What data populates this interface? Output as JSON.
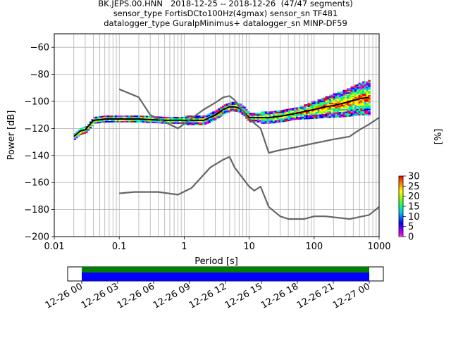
{
  "title": {
    "line1": "BK.JEPS.00.HNN   2018-12-25 -- 2018-12-26  (47/47 segments)",
    "line2": "sensor_type FortisDCto100Hz(4gmax) sensor_sn TF481",
    "line3": "datalogger_type GuralpMinimus+ datalogger_sn MINP-DF59"
  },
  "colorbar": {
    "label": "[%]",
    "ticks": [
      "0",
      "5",
      "10",
      "15",
      "20",
      "25",
      "30"
    ]
  },
  "timeline": {
    "ticks": [
      "12-26 00",
      "12-26 03",
      "12-26 06",
      "12-26 09",
      "12-26 12",
      "12-26 15",
      "12-26 18",
      "12-26 21",
      "12-27 00"
    ],
    "bar_colors": [
      "#008000",
      "#0000ff"
    ]
  },
  "chart_data": {
    "type": "heatmap",
    "title": "BK.JEPS.00.HNN   2018-12-25 -- 2018-12-26  (47/47 segments)",
    "xlabel": "Period [s]",
    "ylabel": "Power [dB]",
    "xscale": "log",
    "xlim": [
      0.01,
      1000
    ],
    "ylim": [
      -200,
      -50
    ],
    "x_ticks": [
      "0.01",
      "0.1",
      "1",
      "10",
      "100",
      "1000"
    ],
    "y_ticks": [
      "-60",
      "-80",
      "-100",
      "-120",
      "-140",
      "-160",
      "-180",
      "-200"
    ],
    "y_tick_values": [
      -60,
      -80,
      -100,
      -120,
      -140,
      -160,
      -180,
      -200
    ],
    "grid": true,
    "colormap": "pqlx",
    "colorbar_range": [
      0,
      30
    ],
    "series": [
      {
        "name": "",
        "role": "mean",
        "color": "#000000",
        "x": [
          0.02,
          0.025,
          0.03,
          0.04,
          0.06,
          0.1,
          0.2,
          0.5,
          1,
          2,
          3,
          4,
          5,
          6,
          7,
          8,
          9,
          10,
          15,
          20,
          30,
          50,
          80,
          100,
          150,
          200,
          300,
          500,
          700
        ],
        "y": [
          -126,
          -122,
          -121,
          -114,
          -113,
          -113,
          -113,
          -114,
          -114,
          -114,
          -110,
          -106,
          -104,
          -104,
          -105,
          -107,
          -110,
          -112,
          -112,
          -112,
          -111,
          -109,
          -107,
          -106,
          -104,
          -103,
          -101,
          -98,
          -97
        ]
      },
      {
        "name": "",
        "role": "mode",
        "color": "#666666",
        "x": [
          0.1,
          0.2,
          0.3,
          0.8,
          2,
          3,
          4,
          5,
          6,
          7,
          8,
          9,
          10,
          15,
          20,
          30,
          50,
          100,
          200,
          350,
          500,
          700,
          1000
        ],
        "y": [
          -91,
          -97,
          -110,
          -120,
          -106,
          -101,
          -97,
          -96,
          -99,
          -104,
          -107,
          -111,
          -113,
          -120,
          -138,
          -136,
          -134,
          -131,
          -128,
          -126,
          -121,
          -117,
          -112
        ]
      },
      {
        "name": "",
        "role": "noise model",
        "color": "#666666",
        "x": [
          0.1,
          0.17,
          0.4,
          0.8,
          1.3,
          2.5,
          4,
          5,
          6,
          10,
          12,
          15,
          20,
          30,
          40,
          70,
          100,
          150,
          350,
          700,
          1000
        ],
        "y": [
          -168,
          -167,
          -167,
          -169,
          -164,
          -149,
          -143,
          -141,
          -149,
          -163,
          -166,
          -163,
          -178,
          -185,
          -187,
          -187,
          -185,
          -185,
          -187,
          -184,
          -178
        ]
      }
    ]
  }
}
